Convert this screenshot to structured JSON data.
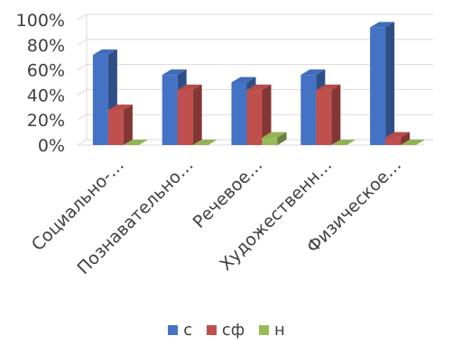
{
  "chart_data": {
    "type": "bar",
    "style": "3d-clustered",
    "categories": [
      "Социально-…",
      "Познавательно…",
      "Речевое…",
      "Художественн…",
      "Физическое…"
    ],
    "series": [
      {
        "name": "с",
        "color": "#4472C4",
        "values": [
          72,
          56,
          50,
          56,
          94
        ]
      },
      {
        "name": "сф",
        "color": "#C0504D",
        "values": [
          28,
          44,
          44,
          44,
          6
        ]
      },
      {
        "name": "н",
        "color": "#9BBB59",
        "values": [
          0,
          0,
          6,
          0,
          0
        ]
      }
    ],
    "ylim": [
      0,
      100
    ],
    "yticks": [
      "0%",
      "20%",
      "40%",
      "60%",
      "80%",
      "100%"
    ],
    "grid": true,
    "legend_position": "bottom"
  }
}
